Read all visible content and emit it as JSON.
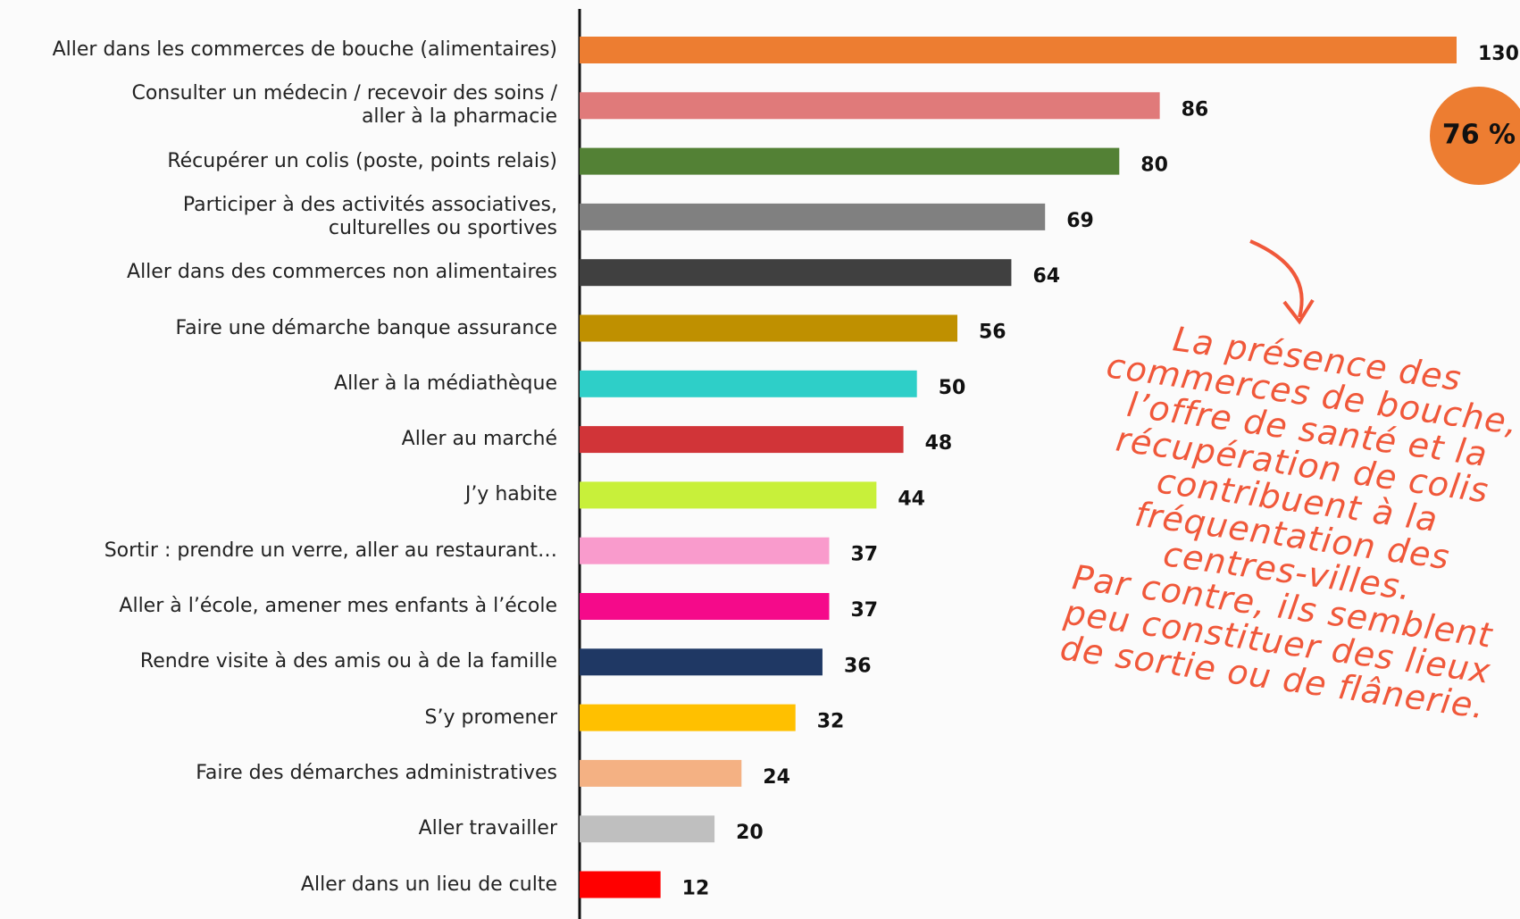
{
  "chart_data": {
    "type": "bar",
    "orientation": "horizontal",
    "categories": [
      "Aller dans les commerces de bouche (alimentaires)",
      "Consulter un médecin / recevoir des soins /\naller à la pharmacie",
      "Récupérer un colis (poste, points relais)",
      "Participer à des activités associatives,\nculturelles ou sportives",
      "Aller dans des commerces non alimentaires",
      "Faire une démarche banque assurance",
      "Aller à la médiathèque",
      "Aller au marché",
      "J’y habite",
      "Sortir : prendre un verre, aller au restaurant…",
      "Aller à l’école, amener mes enfants à l’école",
      "Rendre visite à des amis ou à de la famille",
      "S’y promener",
      "Faire des démarches administratives",
      "Aller travailler",
      "Aller dans un lieu de culte"
    ],
    "values": [
      130,
      86,
      80,
      69,
      64,
      56,
      50,
      48,
      44,
      37,
      37,
      36,
      32,
      24,
      20,
      12
    ],
    "colors": [
      "#ed7d31",
      "#e07a7a",
      "#538135",
      "#808080",
      "#404040",
      "#bf9000",
      "#2ecfc8",
      "#d13438",
      "#c8f03a",
      "#f99bcc",
      "#f50a8a",
      "#1f3864",
      "#ffc000",
      "#f4b183",
      "#bfbfbf",
      "#ff0000"
    ],
    "badge": "76 %",
    "badge_color": "#ed7d31",
    "annotation": "La présence des\ncommerces de bouche,\nl’offre de santé et la\nrécupération de colis\ncontribuent à la\nfréquentation des\ncentres-villes.\nPar contre, ils semblent\npeu constituer des lieux\nde sortie ou de flânerie."
  }
}
